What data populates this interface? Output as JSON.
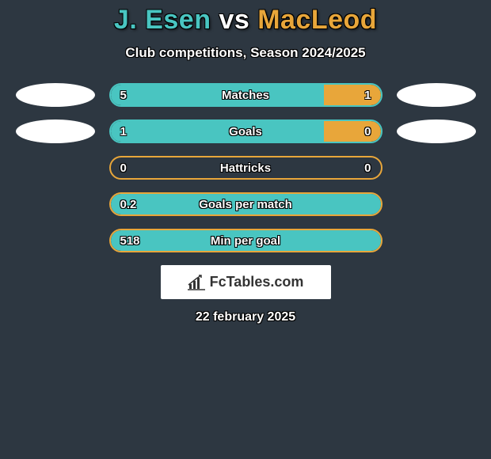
{
  "title": {
    "left_name": "J. Esen",
    "vs": "vs",
    "right_name": "MacLeod",
    "left_color": "#49c5c1",
    "vs_color": "#ffffff",
    "right_color": "#e8a63a",
    "fontsize": 34
  },
  "subtitle": "Club competitions, Season 2024/2025",
  "background_color": "#2d3741",
  "avatars": {
    "left_color": "#ffffff",
    "right_color": "#ffffff"
  },
  "bars": {
    "track_width": 345,
    "track_height": 30,
    "left_fill_color": "#49c5c1",
    "right_fill_color": "#e8a63a",
    "label_color": "#ffffff",
    "label_fontsize": 15,
    "rows": [
      {
        "label": "Matches",
        "left_value": "5",
        "right_value": "1",
        "left_pct": 79,
        "right_pct": 21,
        "border_color": "#49c5c1",
        "show_avatars": true
      },
      {
        "label": "Goals",
        "left_value": "1",
        "right_value": "0",
        "left_pct": 79,
        "right_pct": 21,
        "border_color": "#49c5c1",
        "show_avatars": true
      },
      {
        "label": "Hattricks",
        "left_value": "0",
        "right_value": "0",
        "left_pct": 0,
        "right_pct": 0,
        "border_color": "#e8a63a",
        "show_avatars": false
      },
      {
        "label": "Goals per match",
        "left_value": "0.2",
        "right_value": "",
        "left_pct": 100,
        "right_pct": 0,
        "border_color": "#e8a63a",
        "show_avatars": false
      },
      {
        "label": "Min per goal",
        "left_value": "518",
        "right_value": "",
        "left_pct": 100,
        "right_pct": 0,
        "border_color": "#e8a63a",
        "show_avatars": false
      }
    ]
  },
  "logo": {
    "text": "FcTables.com",
    "bg_color": "#ffffff",
    "text_color": "#333333"
  },
  "date": "22 february 2025"
}
